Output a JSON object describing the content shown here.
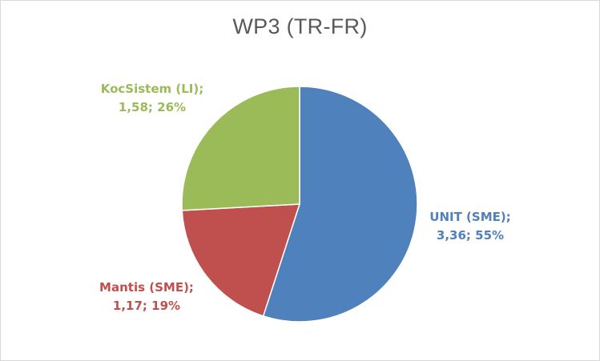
{
  "chart_data": {
    "type": "pie",
    "title": "WP3 (TR-FR)",
    "slices": [
      {
        "name": "UNIT (SME)",
        "value": 3.36,
        "percent": "55%",
        "label_line1": "UNIT (SME);",
        "label_line2": "3,36; 55%",
        "color": "#4f81bd"
      },
      {
        "name": "Mantis (SME)",
        "value": 1.17,
        "percent": "19%",
        "label_line1": "Mantis (SME);",
        "label_line2": "1,17; 19%",
        "color": "#c0504d"
      },
      {
        "name": "KocSistem (LI)",
        "value": 1.58,
        "percent": "26%",
        "label_line1": "KocSistem (LI);",
        "label_line2": "1,58; 26%",
        "color": "#9bbb59"
      }
    ]
  }
}
